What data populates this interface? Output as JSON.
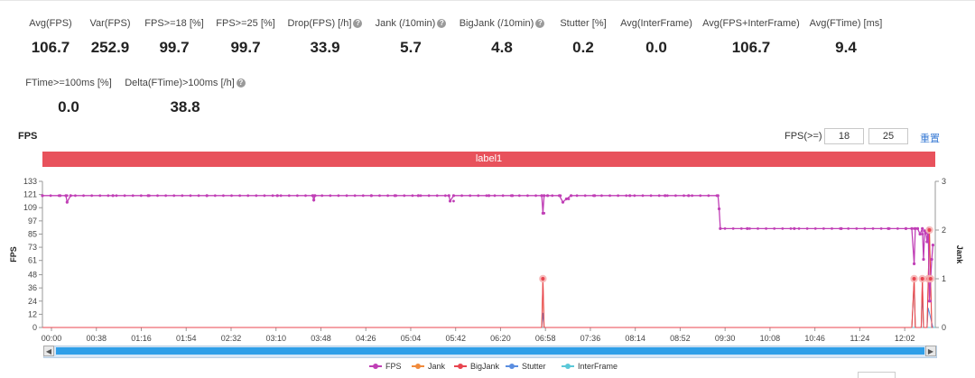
{
  "metrics_row1": [
    {
      "label": "Avg(FPS)",
      "value": "106.7",
      "help": false
    },
    {
      "label": "Var(FPS)",
      "value": "252.9",
      "help": false
    },
    {
      "label": "FPS>=18 [%]",
      "value": "99.7",
      "help": false
    },
    {
      "label": "FPS>=25 [%]",
      "value": "99.7",
      "help": false
    },
    {
      "label": "Drop(FPS) [/h]",
      "value": "33.9",
      "help": true
    },
    {
      "label": "Jank (/10min)",
      "value": "5.7",
      "help": true
    },
    {
      "label": "BigJank (/10min)",
      "value": "4.8",
      "help": true
    },
    {
      "label": "Stutter [%]",
      "value": "0.2",
      "help": false
    },
    {
      "label": "Avg(InterFrame)",
      "value": "0.0",
      "help": false
    },
    {
      "label": "Avg(FPS+InterFrame)",
      "value": "106.7",
      "help": false
    },
    {
      "label": "Avg(FTime) [ms]",
      "value": "9.4",
      "help": false
    }
  ],
  "metrics_row2": [
    {
      "label": "FTime>=100ms [%]",
      "value": "0.0",
      "help": false
    },
    {
      "label": "Delta(FTime)>100ms [/h]",
      "value": "38.8",
      "help": true
    }
  ],
  "chart_header": {
    "title": "FPS",
    "threshold_label": "FPS(>=)",
    "threshold_low": "18",
    "threshold_high": "25",
    "reset_label": "重置"
  },
  "label_bar": "label1",
  "chart_data": {
    "type": "line",
    "ylabel": "FPS",
    "y2label": "Jank",
    "ylim": [
      0,
      133
    ],
    "yticks": [
      0,
      12,
      24,
      36,
      48,
      61,
      73,
      85,
      97,
      109,
      121,
      133
    ],
    "y2lim": [
      0,
      3
    ],
    "y2ticks": [
      0,
      1,
      2,
      3
    ],
    "xticks": [
      "00:00",
      "00:38",
      "01:16",
      "01:54",
      "02:32",
      "03:10",
      "03:48",
      "04:26",
      "05:04",
      "05:42",
      "06:20",
      "06:58",
      "07:36",
      "08:14",
      "08:52",
      "09:30",
      "10:08",
      "10:46",
      "11:24",
      "12:02"
    ],
    "xlim_seconds": [
      0,
      760
    ],
    "series": [
      {
        "name": "FPS",
        "color": "#c03fb6",
        "axis": "left",
        "x": [
          0,
          15,
          20,
          21,
          24,
          60,
          90,
          140,
          200,
          230,
          231,
          232,
          280,
          300,
          320,
          346,
          347,
          350,
          380,
          400,
          425,
          426,
          427,
          430,
          440,
          443,
          446,
          450,
          470,
          500,
          530,
          550,
          575,
          576,
          577,
          600,
          640,
          680,
          720,
          735,
          740,
          742,
          743,
          745,
          747,
          749,
          750,
          751,
          752,
          753,
          754,
          755,
          757,
          758
        ],
        "y": [
          120,
          120,
          120,
          114,
          120,
          120,
          120,
          120,
          120,
          120,
          116,
          120,
          120,
          120,
          120,
          120,
          115,
          120,
          120,
          120,
          120,
          104,
          120,
          120,
          120,
          114,
          117,
          120,
          120,
          120,
          120,
          120,
          120,
          108,
          90,
          90,
          90,
          90,
          90,
          90,
          90,
          58,
          90,
          90,
          85,
          90,
          62,
          88,
          86,
          78,
          90,
          24,
          62,
          75
        ]
      },
      {
        "name": "Jank",
        "color": "#f08a3c",
        "axis": "right",
        "x": [
          0,
          425,
          426,
          427,
          740,
          742,
          743,
          748,
          749,
          750,
          753,
          754,
          755,
          756,
          757,
          758
        ],
        "y": [
          0,
          0,
          1,
          0,
          0,
          1,
          0,
          0,
          1,
          0,
          0,
          1,
          2,
          1,
          0,
          0
        ]
      },
      {
        "name": "BigJank",
        "color": "#e8444f",
        "axis": "right",
        "x": [
          0,
          425,
          426,
          427,
          740,
          742,
          743,
          748,
          749,
          750,
          753,
          754,
          755,
          756,
          757,
          758
        ],
        "y": [
          0,
          0,
          1,
          0,
          0,
          1,
          0,
          0,
          1,
          0,
          0,
          1,
          2,
          1,
          0,
          0
        ]
      },
      {
        "name": "Stutter",
        "color": "#5b8ee0",
        "axis": "right",
        "x": [
          0,
          425,
          426,
          427,
          740,
          742,
          743,
          748,
          749,
          750,
          753,
          754,
          755,
          756,
          757,
          758
        ],
        "y": [
          0,
          0,
          0.3,
          0,
          0,
          0.9,
          0,
          0,
          0.7,
          0,
          0,
          0.4,
          0.3,
          0.2,
          0.1,
          0
        ]
      },
      {
        "name": "InterFrame",
        "color": "#5bc8d8",
        "axis": "right",
        "x": [
          0,
          760
        ],
        "y": [
          0,
          0
        ]
      }
    ],
    "legend_position": "bottom",
    "grid": false
  }
}
